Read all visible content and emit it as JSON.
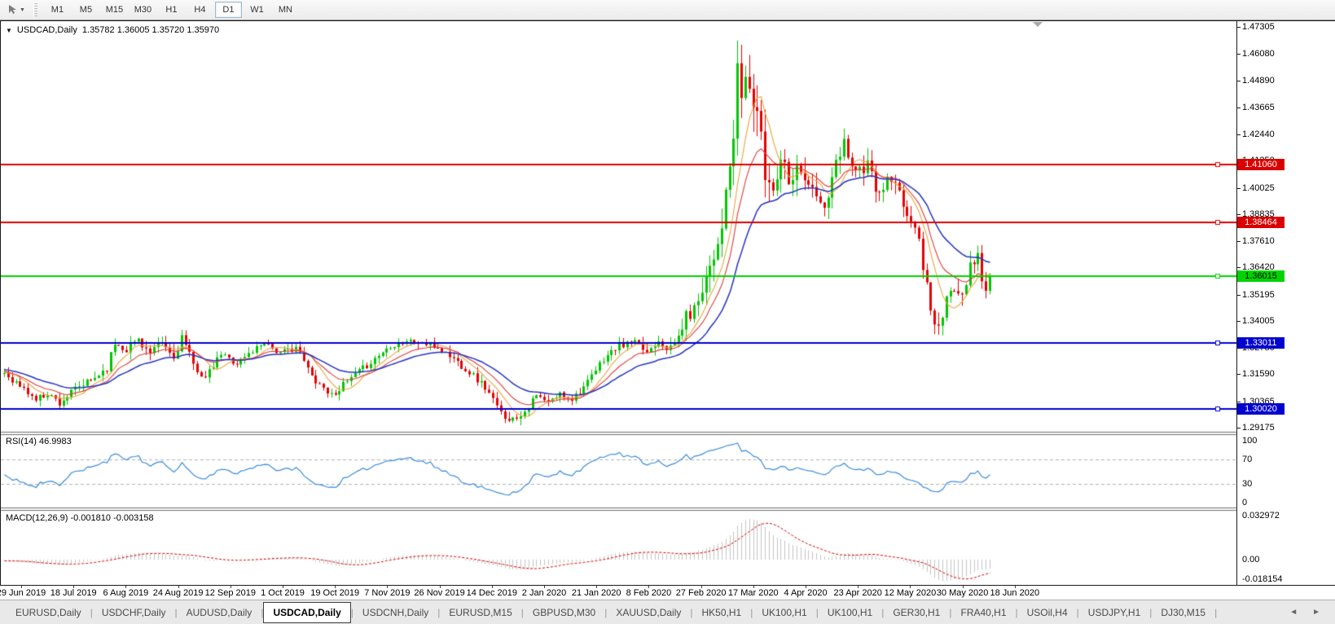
{
  "toolbar": {
    "timeframes": [
      "M1",
      "M5",
      "M15",
      "M30",
      "H1",
      "H4",
      "D1",
      "W1",
      "MN"
    ],
    "active_timeframe": "D1",
    "cursor_tool_icon": "chart-cursor",
    "dropdown_glyph": "▼"
  },
  "chart": {
    "symbol_period": "USDCAD,Daily",
    "ohlc": "1.35782 1.36005 1.35720 1.35970",
    "rsi_label": "RSI(14) 46.9983",
    "macd_label": "MACD(12,26,9) -0.001810 -0.003158",
    "menu_arrow_glyph": "▼"
  },
  "chart_data": {
    "type": "candlestick",
    "symbol": "USDCAD",
    "period": "Daily",
    "open": "1.35782",
    "high": "1.36005",
    "low": "1.35720",
    "close": "1.35970",
    "price_ticks": [
      "1.47305",
      "1.46080",
      "1.44890",
      "1.43665",
      "1.42440",
      "1.41250",
      "1.40025",
      "1.38835",
      "1.37610",
      "1.36420",
      "1.35195",
      "1.34005",
      "1.32780",
      "1.31590",
      "1.30365",
      "1.29175"
    ],
    "date_labels": [
      "29 Jun 2019",
      "18 Jul 2019",
      "6 Aug 2019",
      "24 Aug 2019",
      "12 Sep 2019",
      "1 Oct 2019",
      "19 Oct 2019",
      "7 Nov 2019",
      "26 Nov 2019",
      "14 Dec 2019",
      "2 Jan 2020",
      "21 Jan 2020",
      "8 Feb 2020",
      "27 Feb 2020",
      "17 Mar 2020",
      "4 Apr 2020",
      "23 Apr 2020",
      "12 May 2020",
      "30 May 2020",
      "18 Jun 2020"
    ],
    "candle_count": 251,
    "noise_seed": 11,
    "prehistory": {
      "count": 60,
      "start": 1.3245,
      "end": 1.3165
    },
    "close_keypoints": [
      [
        0,
        1.3165
      ],
      [
        4,
        1.3105
      ],
      [
        8,
        1.3045
      ],
      [
        11,
        1.3075
      ],
      [
        14,
        1.303
      ],
      [
        18,
        1.309
      ],
      [
        22,
        1.313
      ],
      [
        26,
        1.319
      ],
      [
        28,
        1.33
      ],
      [
        31,
        1.3275
      ],
      [
        34,
        1.332
      ],
      [
        37,
        1.325
      ],
      [
        40,
        1.33
      ],
      [
        43,
        1.323
      ],
      [
        45,
        1.333
      ],
      [
        48,
        1.32
      ],
      [
        51,
        1.314
      ],
      [
        55,
        1.325
      ],
      [
        59,
        1.321
      ],
      [
        63,
        1.3265
      ],
      [
        66,
        1.331
      ],
      [
        70,
        1.325
      ],
      [
        74,
        1.3285
      ],
      [
        78,
        1.315
      ],
      [
        83,
        1.3065
      ],
      [
        86,
        1.311
      ],
      [
        90,
        1.317
      ],
      [
        94,
        1.323
      ],
      [
        98,
        1.329
      ],
      [
        102,
        1.331
      ],
      [
        106,
        1.33
      ],
      [
        110,
        1.328
      ],
      [
        114,
        1.323
      ],
      [
        118,
        1.317
      ],
      [
        122,
        1.31
      ],
      [
        126,
        1.298
      ],
      [
        129,
        1.2955
      ],
      [
        132,
        1.2995
      ],
      [
        135,
        1.306
      ],
      [
        138,
        1.303
      ],
      [
        141,
        1.307
      ],
      [
        144,
        1.305
      ],
      [
        148,
        1.312
      ],
      [
        152,
        1.323
      ],
      [
        156,
        1.329
      ],
      [
        160,
        1.33
      ],
      [
        163,
        1.326
      ],
      [
        166,
        1.332
      ],
      [
        169,
        1.327
      ],
      [
        171,
        1.333
      ],
      [
        173,
        1.342
      ],
      [
        175,
        1.345
      ],
      [
        177,
        1.356
      ],
      [
        179,
        1.366
      ],
      [
        181,
        1.376
      ],
      [
        183,
        1.395
      ],
      [
        185,
        1.423
      ],
      [
        186,
        1.4495
      ],
      [
        187,
        1.443
      ],
      [
        188,
        1.4495
      ],
      [
        189,
        1.4445
      ],
      [
        191,
        1.435
      ],
      [
        193,
        1.406
      ],
      [
        195,
        1.4
      ],
      [
        197,
        1.4155
      ],
      [
        199,
        1.406
      ],
      [
        202,
        1.4095
      ],
      [
        205,
        1.3985
      ],
      [
        208,
        1.39
      ],
      [
        211,
        1.41
      ],
      [
        213,
        1.421
      ],
      [
        216,
        1.408
      ],
      [
        219,
        1.41
      ],
      [
        222,
        1.396
      ],
      [
        224,
        1.404
      ],
      [
        226,
        1.401
      ],
      [
        228,
        1.392
      ],
      [
        230,
        1.386
      ],
      [
        232,
        1.376
      ],
      [
        234,
        1.356
      ],
      [
        236,
        1.339
      ],
      [
        237,
        1.336
      ],
      [
        239,
        1.348
      ],
      [
        241,
        1.356
      ],
      [
        243,
        1.354
      ],
      [
        245,
        1.364
      ],
      [
        247,
        1.37
      ],
      [
        248,
        1.359
      ],
      [
        249,
        1.3545
      ],
      [
        250,
        1.3597
      ]
    ],
    "vol_keypoints": [
      [
        0,
        0.0032
      ],
      [
        44,
        0.0048
      ],
      [
        48,
        0.0035
      ],
      [
        100,
        0.0032
      ],
      [
        126,
        0.004
      ],
      [
        140,
        0.0032
      ],
      [
        160,
        0.0036
      ],
      [
        170,
        0.005
      ],
      [
        176,
        0.0075
      ],
      [
        182,
        0.011
      ],
      [
        186,
        0.016
      ],
      [
        190,
        0.014
      ],
      [
        196,
        0.011
      ],
      [
        202,
        0.0085
      ],
      [
        212,
        0.0075
      ],
      [
        222,
        0.0065
      ],
      [
        230,
        0.006
      ],
      [
        236,
        0.0085
      ],
      [
        242,
        0.007
      ],
      [
        250,
        0.0048
      ]
    ],
    "peak_high": 1.4669,
    "bull_color": "#00c600",
    "bear_color": "#e40000",
    "horizontal_lines": [
      {
        "price": 1.4106,
        "label": "1.41060",
        "color": "#da0000",
        "text_color": "#ffffff"
      },
      {
        "price": 1.38464,
        "label": "1.38464",
        "color": "#da0000",
        "text_color": "#ffffff"
      },
      {
        "price": 1.36015,
        "label": "1.36015",
        "color": "#00d400",
        "text_color": "#000000"
      },
      {
        "price": 1.33011,
        "label": "1.33011",
        "color": "#0000cf",
        "text_color": "#ffffff"
      },
      {
        "price": 1.3002,
        "label": "1.30020",
        "color": "#0000cf",
        "text_color": "#ffffff"
      }
    ],
    "moving_averages": [
      {
        "type": "sma",
        "period": 7,
        "color": "#eca43c"
      },
      {
        "type": "ema",
        "period": 13,
        "color": "#e03a3a"
      },
      {
        "type": "ema",
        "period": 26,
        "color": "#2433c4"
      }
    ],
    "rsi": {
      "period": 14,
      "current": "46.9983",
      "levels": [
        70,
        30
      ],
      "axis_ticks": [
        "100",
        "70",
        "30",
        "0"
      ],
      "line_color": "#3b8cdd",
      "level_color": "#b2b2b2"
    },
    "macd": {
      "fast": 12,
      "slow": 26,
      "signal": 9,
      "current_main": "-0.001810",
      "current_signal": "-0.003158",
      "axis_ticks": [
        "0.032972",
        "0.00",
        "-0.018154"
      ],
      "y_max": 0.032972,
      "y_min": -0.018154,
      "hist_color": "#c3c3c3",
      "signal_color": "#dd0000"
    }
  },
  "tabs": {
    "items": [
      "EURUSD,Daily",
      "USDCHF,Daily",
      "AUDUSD,Daily",
      "USDCAD,Daily",
      "USDCNH,Daily",
      "EURUSD,M15",
      "GBPUSD,M30",
      "XAUUSD,Daily",
      "HK50,H1",
      "UK100,H1",
      "UK100,H1",
      "GER30,H1",
      "FRA40,H1",
      "USOil,H4",
      "USDJPY,H1",
      "DJ30,M15"
    ],
    "active": "USDCAD,Daily",
    "nav_left_glyph": "◄",
    "nav_right_glyph": "►"
  }
}
